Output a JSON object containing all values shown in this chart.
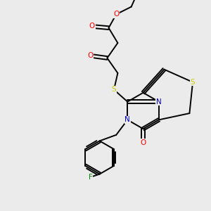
{
  "bg_color": "#ebebeb",
  "bond_color": "#000000",
  "atom_colors": {
    "O": "#ff0000",
    "N": "#0000cc",
    "S_yellow": "#cccc00",
    "S_thio": "#cccc00",
    "F": "#008800"
  }
}
